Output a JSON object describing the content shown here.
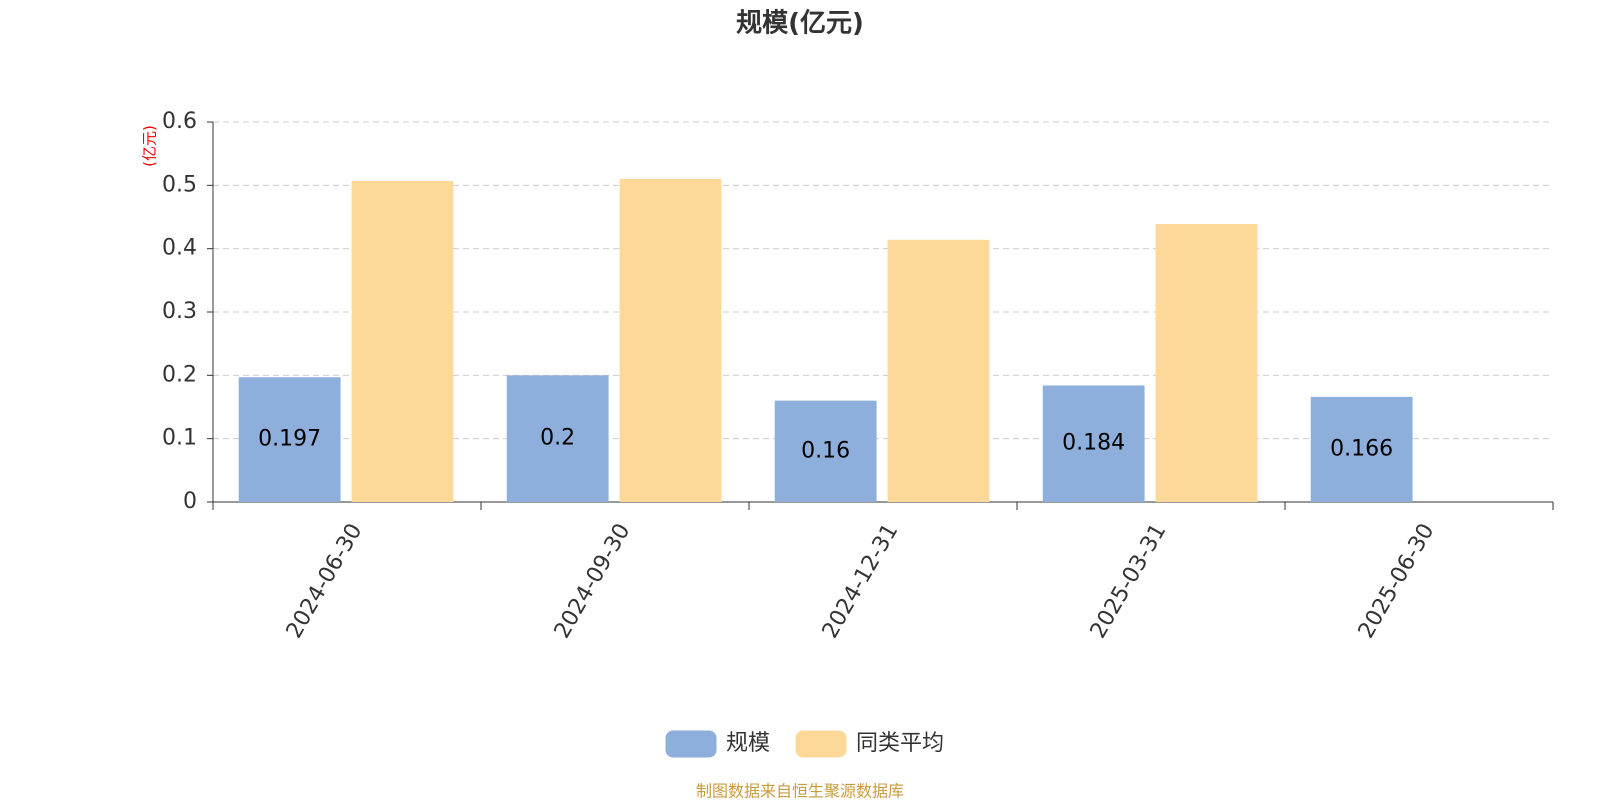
{
  "chart_data": {
    "type": "bar",
    "title": "规模(亿元)",
    "y_label": "(亿元)",
    "categories": [
      "2024-06-30",
      "2024-09-30",
      "2024-12-31",
      "2025-03-31",
      "2025-06-30"
    ],
    "series": [
      {
        "name": "规模",
        "color": "#8eaedb",
        "values": [
          0.197,
          0.2,
          0.16,
          0.184,
          0.166
        ],
        "show_value_labels": true
      },
      {
        "name": "同类平均",
        "color": "#fdd898",
        "values": [
          0.507,
          0.51,
          0.414,
          0.439,
          null
        ]
      }
    ],
    "ylim": [
      0,
      0.6
    ],
    "yticks": [
      0,
      0.1,
      0.2,
      0.3,
      0.4,
      0.5,
      0.6
    ],
    "grid": true,
    "legend": "bottom",
    "footer": "制图数据来自恒生聚源数据库"
  }
}
